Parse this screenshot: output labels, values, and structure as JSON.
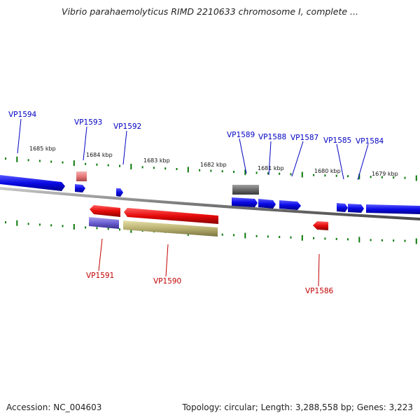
{
  "title": "Vibrio parahaemolyticus RIMD 2210633 chromosome I, complete ...",
  "footer": {
    "accession": "Accession: NC_004603",
    "summary": "Topology: circular; Length: 3,288,558 bp; Genes: 3,223"
  },
  "colors": {
    "forward_gene": "#0a0ae6",
    "reverse_gene": "#e60a0a",
    "pseudo_forward": "#e87878",
    "gray_gene": "#6a6a6a",
    "purple_gene": "#6a5fd0",
    "olive_gene": "#b8b070",
    "tick": "#0a7a0a",
    "backbone": "#7a7a7a",
    "forward_label": "#0000c0",
    "reverse_label": "#c00000"
  },
  "scale_labels": [
    "1685 kbp",
    "1684 kbp",
    "1683 kbp",
    "1682 kbp",
    "1681 kbp",
    "1680 kbp",
    "1679 kbp"
  ],
  "forward_genes": [
    "VP1594",
    "VP1593",
    "VP1592",
    "VP1589",
    "VP1588",
    "VP1587",
    "VP1585",
    "VP1584"
  ],
  "reverse_genes": [
    "VP1591",
    "VP1590",
    "VP1586"
  ]
}
